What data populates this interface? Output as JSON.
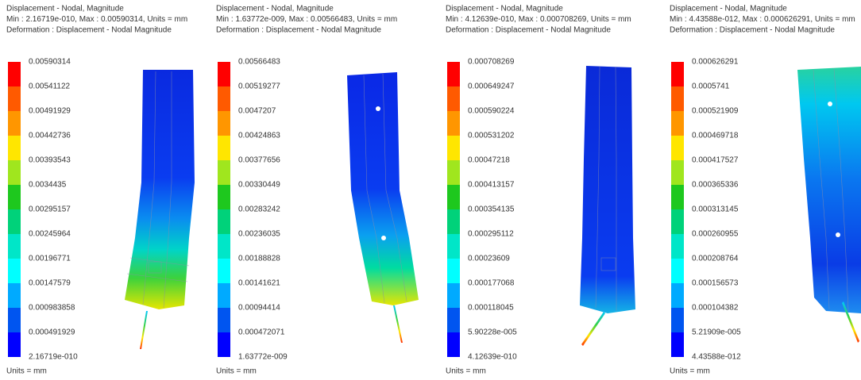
{
  "panels": [
    {
      "header": [
        "Displacement - Nodal, Magnitude",
        "Min : 2.16719e-010, Max : 0.00590314, Units = mm",
        "Deformation : Displacement - Nodal Magnitude"
      ],
      "legend": [
        "0.00590314",
        "0.00541122",
        "0.00491929",
        "0.00442736",
        "0.00393543",
        "0.0034435",
        "0.00295157",
        "0.00245964",
        "0.00196771",
        "0.00147579",
        "0.000983858",
        "0.000491929",
        "2.16719e-010"
      ],
      "units": "Units = mm"
    },
    {
      "header": [
        "Displacement - Nodal, Magnitude",
        "Min : 1.63772e-009, Max : 0.00566483, Units = mm",
        "Deformation : Displacement - Nodal Magnitude"
      ],
      "legend": [
        "0.00566483",
        "0.00519277",
        "0.0047207",
        "0.00424863",
        "0.00377656",
        "0.00330449",
        "0.00283242",
        "0.00236035",
        "0.00188828",
        "0.00141621",
        "0.00094414",
        "0.000472071",
        "1.63772e-009"
      ],
      "units": "Units = mm"
    },
    {
      "header": [
        "Displacement - Nodal, Magnitude",
        "Min : 4.12639e-010, Max : 0.000708269, Units = mm",
        "Deformation : Displacement - Nodal Magnitude"
      ],
      "legend": [
        "0.000708269",
        "0.000649247",
        "0.000590224",
        "0.000531202",
        "0.00047218",
        "0.000413157",
        "0.000354135",
        "0.000295112",
        "0.00023609",
        "0.000177068",
        "0.000118045",
        "5.90228e-005",
        "4.12639e-010"
      ],
      "units": "Units = mm"
    },
    {
      "header": [
        "Displacement - Nodal, Magnitude",
        "Min : 4.43588e-012, Max : 0.000626291, Units = mm",
        "Deformation : Displacement - Nodal Magnitude"
      ],
      "legend": [
        "0.000626291",
        "0.0005741",
        "0.000521909",
        "0.000469718",
        "0.000417527",
        "0.000365336",
        "0.000313145",
        "0.000260955",
        "0.000208764",
        "0.000156573",
        "0.000104382",
        "5.21909e-005",
        "4.43588e-012"
      ],
      "units": "Units = mm"
    }
  ]
}
